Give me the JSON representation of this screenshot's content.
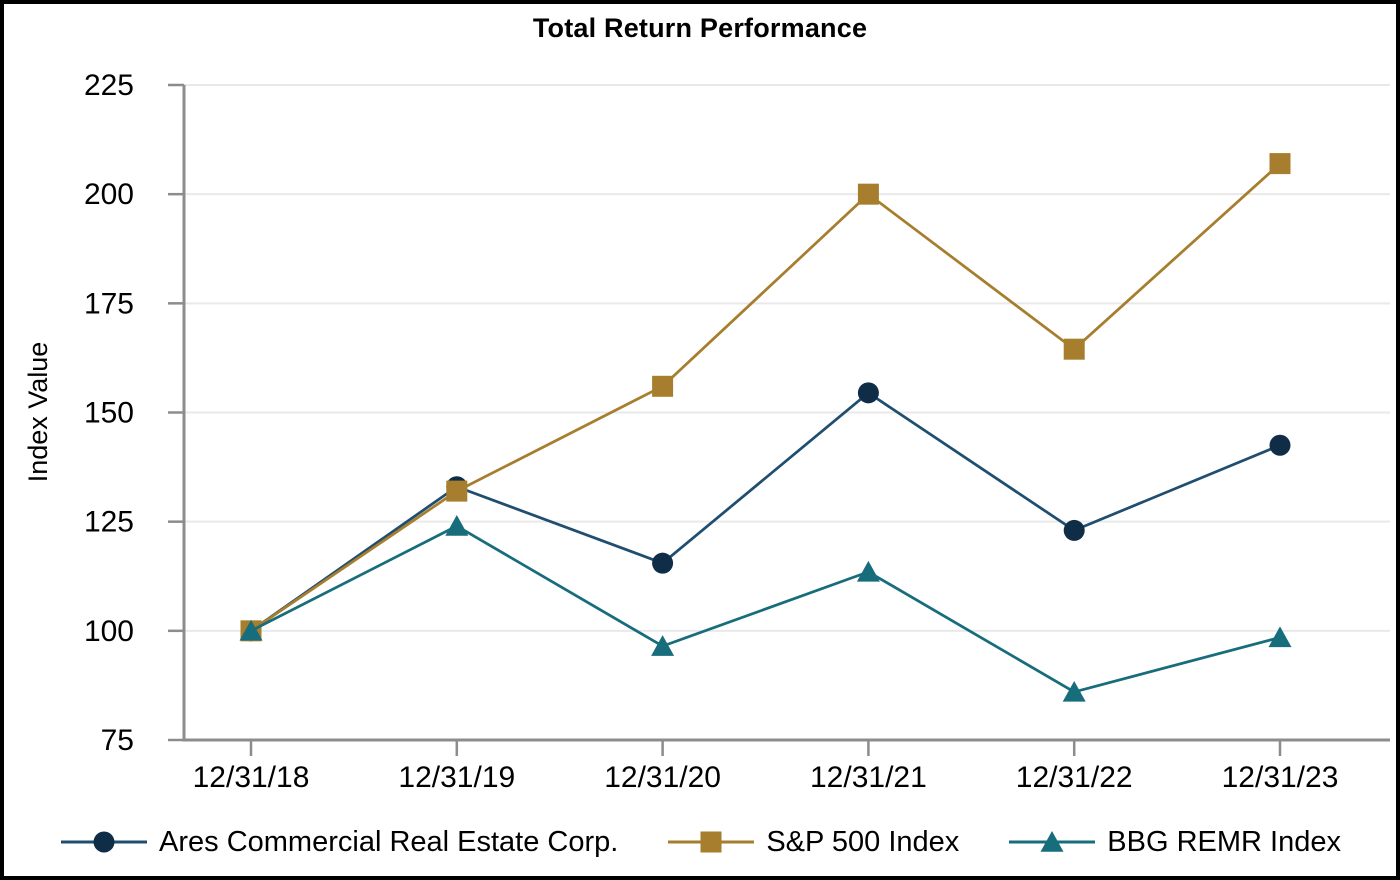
{
  "chart_title": "Total Return Performance",
  "chart_data": {
    "type": "line",
    "title": "Total Return Performance",
    "xlabel": "",
    "ylabel": "Index Value",
    "categories": [
      "12/31/18",
      "12/31/19",
      "12/31/20",
      "12/31/21",
      "12/31/22",
      "12/31/23"
    ],
    "series": [
      {
        "name": "Ares Commercial Real Estate Corp.",
        "marker": "circle",
        "line_color": "#1F4E70",
        "marker_color": "#0F2D47",
        "values": [
          100,
          133,
          115.5,
          154.5,
          123,
          142.5
        ]
      },
      {
        "name": "S&P 500 Index",
        "marker": "square",
        "line_color": "#A67E2D",
        "marker_color": "#A67E2D",
        "values": [
          100,
          132,
          156,
          200,
          164.5,
          207
        ]
      },
      {
        "name": "BBG REMR Index",
        "marker": "triangle",
        "line_color": "#176D7B",
        "marker_color": "#176D7B",
        "values": [
          100,
          124,
          96.5,
          113.5,
          86,
          98.5
        ]
      }
    ],
    "ylim": [
      75,
      225
    ],
    "yticks": [
      75,
      100,
      125,
      150,
      175,
      200,
      225
    ],
    "grid": true,
    "legend_position": "bottom",
    "axis_color": "#8C8C8C",
    "gridline_color": "#E9E9E9",
    "text_color": "#000000",
    "background_color": "#FFFFFF",
    "border_color": "#000000"
  }
}
